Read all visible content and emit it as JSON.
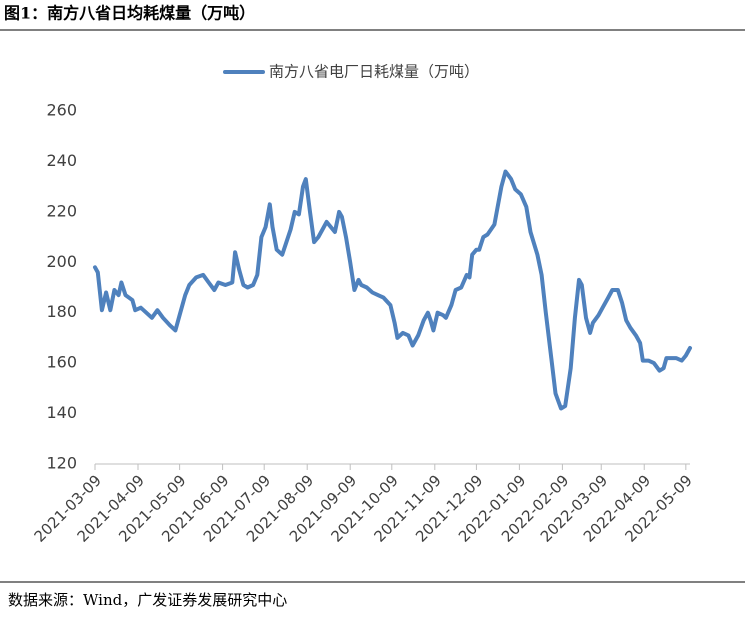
{
  "header": {
    "title": "图1：南方八省日均耗煤量（万吨）"
  },
  "chart_data": {
    "type": "line",
    "series": [
      {
        "name": "南方八省电厂日耗煤量（万吨）",
        "color": "#4f81bd",
        "values": [
          198,
          196,
          181,
          188,
          181,
          189,
          187,
          192,
          187,
          185,
          181,
          182,
          180,
          178,
          181,
          178,
          175,
          173,
          179,
          187,
          191,
          194,
          195,
          192,
          189,
          192,
          191,
          192,
          204,
          197,
          191,
          190,
          191,
          195,
          210,
          214,
          223,
          214,
          205,
          203,
          208,
          213,
          220,
          219,
          230,
          233,
          220,
          208,
          210,
          213,
          216,
          214,
          212,
          220,
          218,
          210,
          200,
          189,
          193,
          191,
          190,
          188,
          187,
          186,
          183,
          176,
          170,
          172,
          171,
          167,
          171,
          177,
          180,
          177,
          173,
          180,
          179,
          178,
          183,
          189,
          190,
          195,
          194,
          203,
          205,
          205,
          210,
          211,
          215,
          221,
          230,
          236,
          233,
          229,
          227,
          222,
          212,
          203,
          195,
          180,
          162,
          148,
          142,
          143,
          158,
          178,
          193,
          191,
          178,
          172,
          176,
          179,
          182,
          186,
          189,
          189,
          184,
          177,
          174,
          171,
          168,
          161,
          161,
          160,
          157,
          158,
          162,
          162,
          162,
          161,
          163,
          166
        ]
      }
    ],
    "x": [
      "2021-03-09",
      "2021-03-11",
      "2021-03-14",
      "2021-03-17",
      "2021-03-20",
      "2021-03-23",
      "2021-03-26",
      "2021-03-28",
      "2021-03-31",
      "2021-04-05",
      "2021-04-07",
      "2021-04-11",
      "2021-04-15",
      "2021-04-19",
      "2021-04-23",
      "2021-04-27",
      "2021-05-02",
      "2021-05-06",
      "2021-05-09",
      "2021-05-13",
      "2021-05-16",
      "2021-05-21",
      "2021-05-26",
      "2021-05-30",
      "2021-06-03",
      "2021-06-06",
      "2021-06-11",
      "2021-06-16",
      "2021-06-18",
      "2021-06-21",
      "2021-06-24",
      "2021-06-27",
      "2021-07-01",
      "2021-07-04",
      "2021-07-07",
      "2021-07-10",
      "2021-07-13",
      "2021-07-15",
      "2021-07-18",
      "2021-07-22",
      "2021-07-25",
      "2021-07-28",
      "2021-07-31",
      "2021-08-03",
      "2021-08-06",
      "2021-08-08",
      "2021-08-11",
      "2021-08-14",
      "2021-08-17",
      "2021-08-20",
      "2021-08-23",
      "2021-08-26",
      "2021-08-29",
      "2021-09-01",
      "2021-09-03",
      "2021-09-06",
      "2021-09-09",
      "2021-09-12",
      "2021-09-15",
      "2021-09-17",
      "2021-09-21",
      "2021-09-25",
      "2021-09-29",
      "2021-10-03",
      "2021-10-08",
      "2021-10-11",
      "2021-10-13",
      "2021-10-17",
      "2021-10-21",
      "2021-10-24",
      "2021-10-28",
      "2021-11-01",
      "2021-11-04",
      "2021-11-06",
      "2021-11-08",
      "2021-11-11",
      "2021-11-15",
      "2021-11-17",
      "2021-11-21",
      "2021-11-24",
      "2021-11-28",
      "2021-12-02",
      "2021-12-04",
      "2021-12-06",
      "2021-12-09",
      "2021-12-11",
      "2021-12-14",
      "2021-12-17",
      "2021-12-22",
      "2021-12-24",
      "2021-12-27",
      "2021-12-30",
      "2022-01-03",
      "2022-01-06",
      "2022-01-10",
      "2022-01-14",
      "2022-01-17",
      "2022-01-22",
      "2022-01-25",
      "2022-01-28",
      "2022-02-01",
      "2022-02-04",
      "2022-02-08",
      "2022-02-11",
      "2022-02-15",
      "2022-02-18",
      "2022-02-21",
      "2022-02-23",
      "2022-02-26",
      "2022-03-01",
      "2022-03-03",
      "2022-03-07",
      "2022-03-10",
      "2022-03-14",
      "2022-03-17",
      "2022-03-21",
      "2022-03-24",
      "2022-03-27",
      "2022-03-30",
      "2022-04-03",
      "2022-04-06",
      "2022-04-08",
      "2022-04-12",
      "2022-04-16",
      "2022-04-20",
      "2022-04-23",
      "2022-04-25",
      "2022-04-29",
      "2022-05-02",
      "2022-05-06",
      "2022-05-09",
      "2022-05-12"
    ],
    "xlim": [
      "2021-03-09",
      "2022-05-12"
    ],
    "xticks": [
      "2021-03-09",
      "2021-04-09",
      "2021-05-09",
      "2021-06-09",
      "2021-07-09",
      "2021-08-09",
      "2021-09-09",
      "2021-10-09",
      "2021-11-09",
      "2021-12-09",
      "2022-01-09",
      "2022-02-09",
      "2022-03-09",
      "2022-04-09",
      "2022-05-09"
    ],
    "ylim": [
      120,
      260
    ],
    "yticks": [
      120,
      140,
      160,
      180,
      200,
      220,
      240,
      260
    ],
    "grid": false,
    "legend": "top"
  },
  "footer": {
    "source": "数据来源：Wind，广发证券发展研究中心"
  }
}
